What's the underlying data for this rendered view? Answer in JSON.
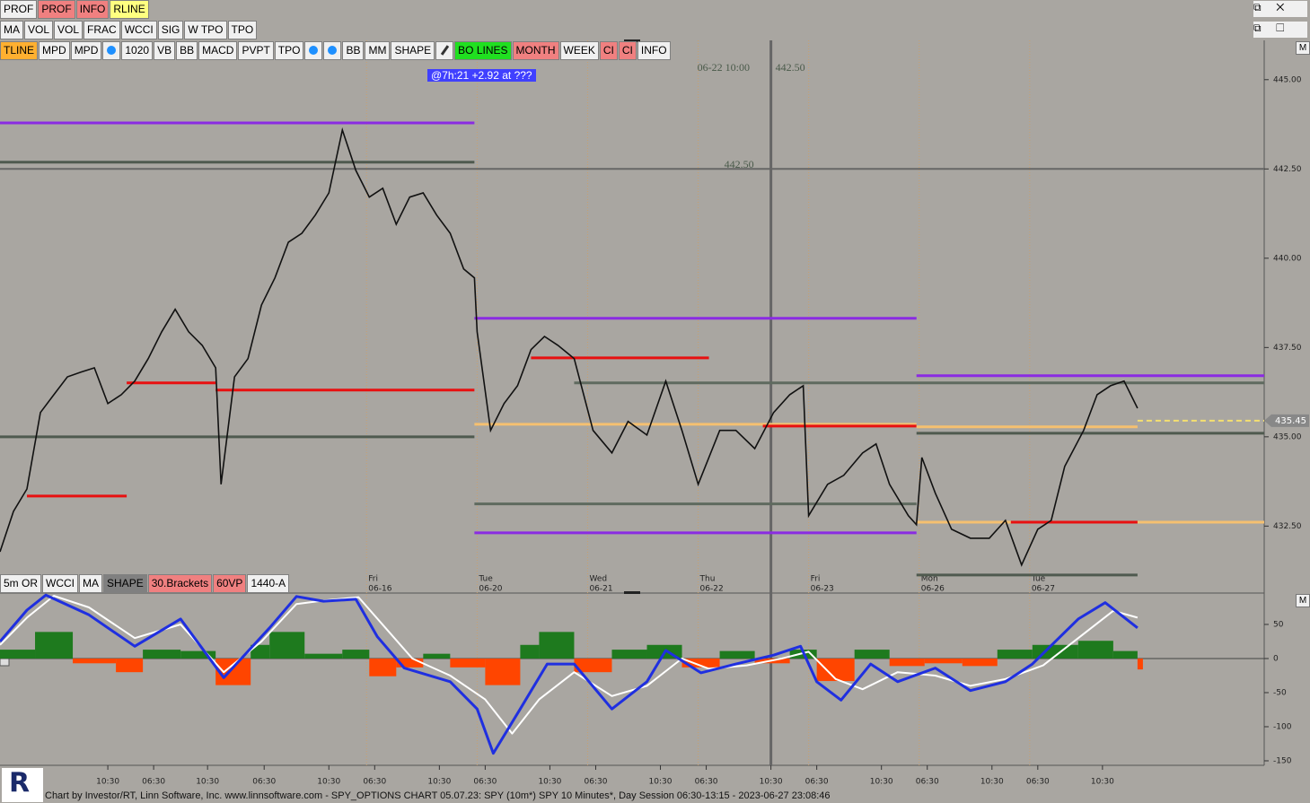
{
  "toolbars": {
    "row1": [
      {
        "label": "PROF",
        "color": "#f0f0f0"
      },
      {
        "label": "PROF",
        "color": "#f08080"
      },
      {
        "label": "INFO",
        "color": "#f08080"
      },
      {
        "label": "RLINE",
        "color": "#ffff80"
      }
    ],
    "row2": [
      {
        "label": "MA",
        "color": "#f0f0f0"
      },
      {
        "label": "VOL",
        "color": "#f0f0f0"
      },
      {
        "label": "VOL",
        "color": "#f0f0f0"
      },
      {
        "label": "FRAC",
        "color": "#f0f0f0"
      },
      {
        "label": "WCCI",
        "color": "#f0f0f0"
      },
      {
        "label": "SIG",
        "color": "#f0f0f0"
      },
      {
        "label": "W TPO",
        "color": "#f0f0f0"
      },
      {
        "label": "TPO",
        "color": "#f0f0f0"
      }
    ],
    "row3": [
      {
        "label": "TLINE",
        "color": "#ffb030"
      },
      {
        "label": "MPD",
        "color": "#f0f0f0"
      },
      {
        "label": "MPD",
        "color": "#f0f0f0"
      },
      {
        "icon": "timer"
      },
      {
        "label": "1020",
        "color": "#f0f0f0"
      },
      {
        "label": "VB",
        "color": "#f0f0f0"
      },
      {
        "label": "BB",
        "color": "#f0f0f0"
      },
      {
        "label": "MACD",
        "color": "#f0f0f0"
      },
      {
        "label": "PVPT",
        "color": "#f0f0f0"
      },
      {
        "label": "TPO",
        "color": "#f0f0f0"
      },
      {
        "icon": "timer"
      },
      {
        "icon": "clock"
      },
      {
        "label": "BB",
        "color": "#f0f0f0"
      },
      {
        "label": "MM",
        "color": "#f0f0f0"
      },
      {
        "label": "SHAPE",
        "color": "#f0f0f0"
      },
      {
        "icon": "pencil"
      },
      {
        "label": "BO LINES",
        "color": "#20e020"
      },
      {
        "label": "MONTH",
        "color": "#f08080"
      },
      {
        "label": "WEEK",
        "color": "#f0f0f0"
      },
      {
        "label": "CI",
        "color": "#f08080"
      },
      {
        "label": "CI",
        "color": "#f08080"
      },
      {
        "label": "INFO",
        "color": "#f0f0f0"
      }
    ],
    "lower": [
      {
        "label": "5m OR",
        "color": "#f0f0f0"
      },
      {
        "label": "WCCI",
        "color": "#f0f0f0"
      },
      {
        "label": "MA",
        "color": "#f0f0f0"
      },
      {
        "label": "SHAPE",
        "color": "#808080"
      },
      {
        "label": "30.Brackets",
        "color": "#f08080"
      },
      {
        "label": "60VP",
        "color": "#f08080"
      },
      {
        "label": "1440-A",
        "color": "#f0f0f0"
      }
    ]
  },
  "status_badge": "@7h:21  +2.92 at ???",
  "footer": "Chart by Investor/RT, Linn Software, Inc. www.linnsoftware.com - SPY_OPTIONS CHART   05.07.23: SPY (10m*) SPY 10 Minutes*, Day Session 06:30-13:15 - 2023-06-27 23:08:46",
  "scale_button": "M",
  "chart_data": [
    {
      "type": "line",
      "color": "#111111",
      "xlim": [
        0,
        469
      ],
      "ylim": [
        430.65,
        446.1
      ],
      "x": [
        0,
        5,
        10,
        15,
        20,
        25,
        30,
        35,
        40,
        45,
        50,
        55,
        60,
        65,
        70,
        75,
        80,
        82,
        87,
        92,
        97,
        102,
        107,
        112,
        117,
        122,
        127,
        132,
        137,
        142,
        147,
        152,
        157,
        162,
        167,
        172,
        176,
        177,
        182,
        187,
        192,
        197,
        202,
        207,
        213,
        220,
        227,
        233,
        240,
        247,
        253,
        259,
        267,
        273,
        280,
        287,
        293,
        298,
        300,
        307,
        313,
        320,
        325,
        330,
        337,
        340,
        342,
        347,
        353,
        360,
        367,
        373,
        379,
        385,
        390,
        395,
        402,
        407,
        412,
        417,
        422
      ],
      "values": [
        431.78,
        432.91,
        433.54,
        435.68,
        436.18,
        436.68,
        436.81,
        436.93,
        435.93,
        436.18,
        436.56,
        437.19,
        437.94,
        438.57,
        437.94,
        437.56,
        436.93,
        433.67,
        436.68,
        437.19,
        438.69,
        439.45,
        440.45,
        440.7,
        441.21,
        441.83,
        443.59,
        442.46,
        441.71,
        441.96,
        440.95,
        441.71,
        441.83,
        441.21,
        440.7,
        439.7,
        439.45,
        437.94,
        435.18,
        435.93,
        436.43,
        437.44,
        437.81,
        437.56,
        437.19,
        435.18,
        434.55,
        435.43,
        435.05,
        436.56,
        435.18,
        433.67,
        435.18,
        435.18,
        434.67,
        435.68,
        436.18,
        436.43,
        432.79,
        433.67,
        433.92,
        434.55,
        434.8,
        433.67,
        432.79,
        432.54,
        434.42,
        433.42,
        432.41,
        432.16,
        432.16,
        432.66,
        431.41,
        432.41,
        432.66,
        434.17,
        435.18,
        436.18,
        436.43,
        436.56,
        435.8
      ],
      "yticks": [
        {
          "value": 445,
          "label": "445.00"
        },
        {
          "value": 442.5,
          "label": "442.50"
        },
        {
          "value": 440,
          "label": "440.00"
        },
        {
          "value": 437.5,
          "label": "437.50"
        },
        {
          "value": 435,
          "label": "435.00"
        },
        {
          "value": 432.5,
          "label": "432.50"
        }
      ],
      "xticks": [
        {
          "value": 40,
          "label": "10:30"
        },
        {
          "value": 57,
          "label": "06:30"
        },
        {
          "value": 77,
          "label": "10:30"
        },
        {
          "value": 98,
          "label": "06:30"
        },
        {
          "value": 122,
          "label": "10:30"
        },
        {
          "value": 139,
          "label": "06:30"
        },
        {
          "value": 163,
          "label": "10:30"
        },
        {
          "value": 180,
          "label": "06:30"
        },
        {
          "value": 204,
          "label": "10:30"
        },
        {
          "value": 221,
          "label": "06:30"
        },
        {
          "value": 245,
          "label": "10:30"
        },
        {
          "value": 262,
          "label": "06:30"
        },
        {
          "value": 286,
          "label": "10:30"
        },
        {
          "value": 303,
          "label": "06:30"
        },
        {
          "value": 327,
          "label": "10:30"
        },
        {
          "value": 344,
          "label": "06:30"
        },
        {
          "value": 368,
          "label": "10:30"
        },
        {
          "value": 385,
          "label": "06:30"
        },
        {
          "value": 409,
          "label": "10:30"
        }
      ],
      "day_labels": [
        {
          "value": 136,
          "day": "Fri",
          "date": "06-16"
        },
        {
          "value": 177,
          "day": "Tue",
          "date": "06-20"
        },
        {
          "value": 218,
          "day": "Wed",
          "date": "06-21"
        },
        {
          "value": 259,
          "day": "Thu",
          "date": "06-22"
        },
        {
          "value": 300,
          "day": "Fri",
          "date": "06-23"
        },
        {
          "value": 341,
          "day": "Mon",
          "date": "06-26"
        },
        {
          "value": 382,
          "day": "Tue",
          "date": "06-27"
        }
      ],
      "levels": [
        {
          "price": 443.79,
          "x": [
            0,
            176
          ],
          "color": "#8a2be2"
        },
        {
          "price": 442.69,
          "x": [
            0,
            176
          ],
          "color": "#4f5a4f"
        },
        {
          "price": 435.0,
          "x": [
            0,
            176
          ],
          "color": "#4f5a4f"
        },
        {
          "price": 433.34,
          "x": [
            10,
            47
          ],
          "color": "#e81010"
        },
        {
          "price": 436.51,
          "x": [
            47,
            80
          ],
          "color": "#e81010"
        },
        {
          "price": 436.31,
          "x": [
            80,
            176
          ],
          "color": "#e81010"
        },
        {
          "price": 438.32,
          "x": [
            176,
            340
          ],
          "color": "#8a2be2"
        },
        {
          "price": 432.31,
          "x": [
            176,
            340
          ],
          "color": "#8a2be2"
        },
        {
          "price": 436.51,
          "x": [
            213,
            469
          ],
          "color": "#5f6a5f"
        },
        {
          "price": 437.21,
          "x": [
            197,
            263
          ],
          "color": "#e81010"
        },
        {
          "price": 435.35,
          "x": [
            176,
            340
          ],
          "color": "#f5c070"
        },
        {
          "price": 435.3,
          "x": [
            283,
            340
          ],
          "color": "#e81010"
        },
        {
          "price": 433.12,
          "x": [
            176,
            340
          ],
          "color": "#5f6a5f"
        },
        {
          "price": 436.71,
          "x": [
            340,
            469
          ],
          "color": "#8a2be2"
        },
        {
          "price": 435.28,
          "x": [
            340,
            422
          ],
          "color": "#f5c070"
        },
        {
          "price": 435.1,
          "x": [
            340,
            469
          ],
          "color": "#4f5a4f"
        },
        {
          "price": 432.61,
          "x": [
            340,
            469
          ],
          "color": "#f5c070"
        },
        {
          "price": 432.61,
          "x": [
            375,
            422
          ],
          "color": "#e81010"
        },
        {
          "price": 431.13,
          "x": [
            340,
            422
          ],
          "color": "#4f5a4f"
        }
      ],
      "crosshair": {
        "x": 286,
        "time": "06-22 10:00",
        "price": {
          "value": 442.5,
          "label": "442.50"
        }
      },
      "last_price": 435.45,
      "last_price_color": "#f5e070"
    },
    {
      "type": "oscillator",
      "xlim": [
        0,
        469
      ],
      "ylim": [
        -156.6,
        94.7
      ],
      "yticks": [
        50,
        0,
        -50,
        -100,
        -150
      ],
      "series": [
        {
          "color": "#1f2fe0",
          "x": [
            0,
            10,
            17,
            33,
            50,
            67,
            83,
            100,
            110,
            120,
            132,
            140,
            150,
            167,
            177,
            183,
            193,
            203,
            213,
            227,
            240,
            247,
            260,
            273,
            287,
            297,
            303,
            312,
            323,
            333,
            347,
            360,
            373,
            383,
            400,
            410,
            422
          ],
          "values": [
            25,
            71,
            93,
            64,
            18,
            58,
            -28,
            45,
            91,
            84,
            87,
            32,
            -14,
            -34,
            -74,
            -139,
            -74,
            -8,
            -8,
            -74,
            -34,
            12,
            -21,
            -8,
            5,
            18,
            -34,
            -61,
            -8,
            -34,
            -14,
            -47,
            -34,
            -8,
            58,
            82,
            45
          ]
        },
        {
          "color": "#ffffff",
          "x": [
            0,
            10,
            20,
            33,
            50,
            67,
            83,
            97,
            110,
            120,
            133,
            143,
            153,
            167,
            180,
            190,
            200,
            213,
            227,
            240,
            253,
            263,
            277,
            290,
            300,
            310,
            320,
            333,
            347,
            360,
            373,
            387,
            400,
            413,
            422
          ],
          "values": [
            20,
            60,
            92,
            75,
            30,
            50,
            -20,
            25,
            80,
            85,
            90,
            45,
            0,
            -25,
            -60,
            -110,
            -60,
            -20,
            -55,
            -40,
            0,
            -15,
            -10,
            0,
            10,
            -30,
            -45,
            -20,
            -25,
            -40,
            -30,
            -10,
            30,
            70,
            60
          ]
        }
      ],
      "histogram": {
        "pos_color": "#1e7a1e",
        "neg_color": "#ff4500",
        "x": [
          0,
          13,
          27,
          43,
          53,
          67,
          80,
          93,
          100,
          113,
          127,
          137,
          147,
          157,
          167,
          180,
          193,
          200,
          213,
          227,
          240,
          253,
          267,
          280,
          293,
          303,
          317,
          330,
          343,
          357,
          370,
          383,
          400,
          413,
          422
        ],
        "values": [
          13,
          39,
          -7,
          -20,
          13,
          11,
          -39,
          20,
          39,
          7,
          13,
          -26,
          -13,
          7,
          -13,
          -39,
          20,
          39,
          -20,
          13,
          20,
          -13,
          11,
          -7,
          13,
          -33,
          13,
          -11,
          -7,
          -11,
          13,
          20,
          26,
          11,
          -16
        ]
      }
    }
  ]
}
